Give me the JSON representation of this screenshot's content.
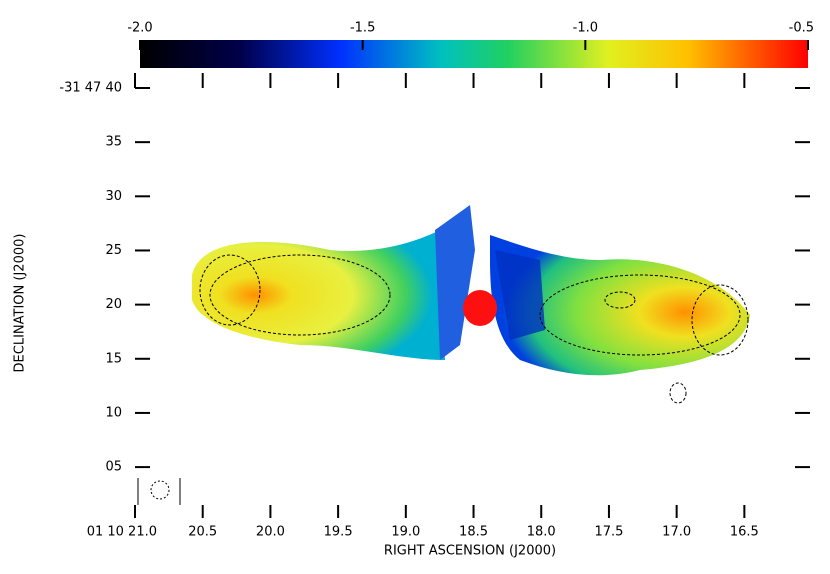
{
  "chart_data": {
    "type": "image",
    "xlabel": "RIGHT ASCENSION (J2000)",
    "ylabel": "DECLINATION (J2000)",
    "xlim": [
      21.0,
      16.03
    ],
    "xticks": [
      {
        "value": 21.0,
        "label": "01 10 21.0"
      },
      20.5,
      {
        "value": 20.0,
        "label": "20.0"
      },
      19.5,
      {
        "value": 19.0,
        "label": "19.0"
      },
      18.5,
      {
        "value": 18.0,
        "label": "18.0"
      },
      17.5,
      {
        "value": 17.0,
        "label": "17.0"
      },
      16.5
    ],
    "ylim": [
      0.3,
      40
    ],
    "yticks": [
      {
        "value": 40,
        "label": "-31 47 40"
      },
      35,
      30,
      25,
      20,
      15,
      10,
      {
        "value": 5,
        "label": "05"
      }
    ],
    "colorbar": {
      "lim": [
        -2.0,
        -0.5
      ],
      "ticks": [
        {
          "value": -2.0,
          "label": "-2.0"
        },
        -1.5,
        {
          "value": -1.0,
          "label": "-1.0"
        },
        -0.5
      ]
    }
  }
}
